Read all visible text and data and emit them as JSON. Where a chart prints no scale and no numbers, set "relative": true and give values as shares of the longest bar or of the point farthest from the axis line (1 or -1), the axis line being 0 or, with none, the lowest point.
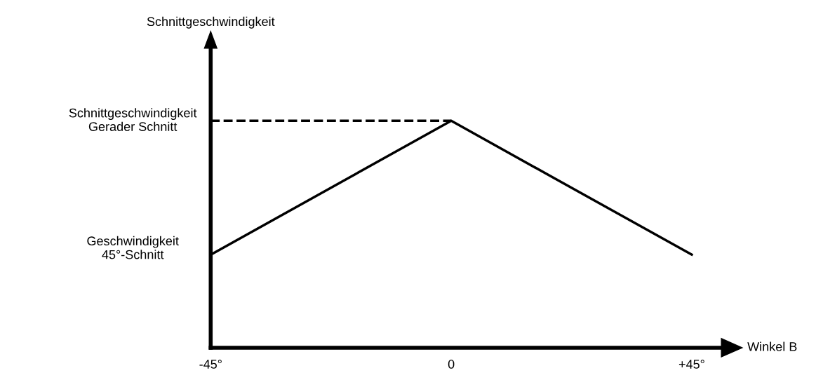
{
  "chart_data": {
    "type": "line",
    "relative": true,
    "xlabel": "Winkel B",
    "x": [
      -45,
      0,
      45
    ],
    "series": [
      {
        "color": "#000000",
        "values": [
          0.41,
          1,
          0.41
        ]
      }
    ],
    "xlim": [
      -45,
      52
    ],
    "xticks": [
      {
        "value": -45,
        "label": "-45°"
      },
      0,
      {
        "value": 45,
        "label": "+45°"
      }
    ],
    "ref_lines": [
      {
        "axis": "y",
        "value": 1,
        "label": "Schnittgeschwindigkeit\nGerader Schnitt",
        "color": "#000000",
        "line_style": "dashed"
      }
    ],
    "annotations": [
      "Schnittgeschwindigkeit",
      {
        "text": "Geschwindigkeit\n45°-Schnitt",
        "x": -45,
        "y": 0.41
      }
    ],
    "grid": false,
    "legend": false,
    "marker": "none",
    "line_style": "solid"
  }
}
